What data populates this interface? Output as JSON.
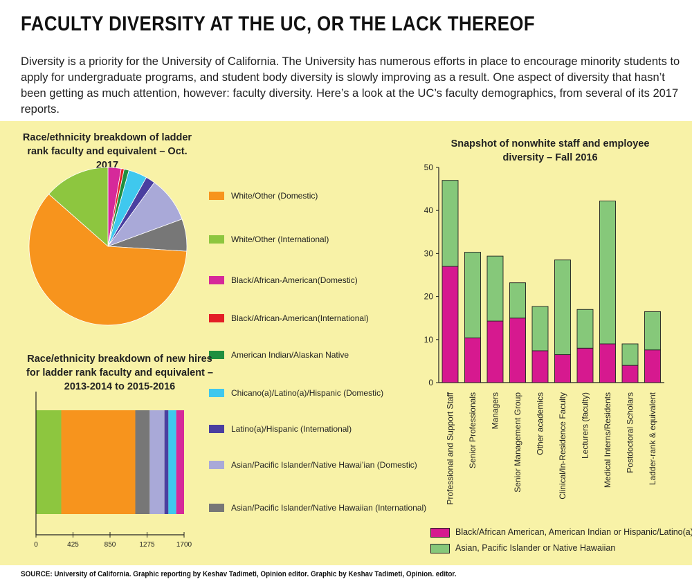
{
  "header": {
    "title": "FACULTY DIVERSITY AT THE UC, OR THE LACK THEREOF",
    "intro": "Diversity is a priority for the University of California. The University has numerous efforts in place to encourage minority students to apply for undergraduate programs, and student body diversity is slowly improving as a result. One aspect of diversity that hasn’t been getting as much attention, however: faculty diversity. Here’s a look at the UC’s faculty demographics, from several of its 2017 reports."
  },
  "legend": [
    {
      "label": "White/Other (Domestic)",
      "color": "#f7941d"
    },
    {
      "label": "White/Other (International)",
      "color": "#8dc63f"
    },
    {
      "label": "Black/African-American(Domestic)",
      "color": "#d6299a"
    },
    {
      "label": "Black/African-American(International)",
      "color": "#e31e26"
    },
    {
      "label": "American Indian/Alaskan Native",
      "color": "#1f8f3f"
    },
    {
      "label": "Chicano(a)/Latino(a)/Hispanic (Domestic)",
      "color": "#3fc8ee"
    },
    {
      "label": "Latino(a)/Hispanic (International)",
      "color": "#4a3fa0"
    },
    {
      "label": "Asian/Pacific Islander/Native Hawai’ian (Domestic)",
      "color": "#a9a9d8"
    },
    {
      "label": "Asian/Pacific Islander/Native Hawaiian (International)",
      "color": "#777777"
    }
  ],
  "chart_data": [
    {
      "type": "pie",
      "title": "Race/ethnicity breakdown of ladder rank faculty and equivalent – Oct. 2017",
      "categories": [
        "White/Other (Domestic)",
        "White/Other (International)",
        "Black/African-American(Domestic)",
        "Black/African-American(International)",
        "American Indian/Alaskan Native",
        "Chicano(a)/Latino(a)/Hispanic (Domestic)",
        "Latino(a)/Hispanic (International)",
        "Asian/Pacific Islander/Native Hawai’ian (Domestic)",
        "Asian/Pacific Islander/Native Hawaiian (International)"
      ],
      "values": [
        60.5,
        13.5,
        2.7,
        0.6,
        1.0,
        3.8,
        1.9,
        9.4,
        6.6
      ],
      "start_angle_deg": 0
    },
    {
      "type": "bar",
      "orientation": "horizontal-stacked",
      "title": "Race/ethnicity breakdown of new hires for ladder rank faculty and equivalent – 2013-2014 to 2015-2016",
      "series": [
        {
          "name": "White/Other (International)",
          "value": 290
        },
        {
          "name": "White/Other (Domestic)",
          "value": 850
        },
        {
          "name": "Asian/Pacific Islander/Native Hawaiian (International)",
          "value": 165
        },
        {
          "name": "Asian/Pacific Islander/Native Hawai’ian (Domestic)",
          "value": 170
        },
        {
          "name": "Latino(a)/Hispanic (International)",
          "value": 45
        },
        {
          "name": "Chicano(a)/Latino(a)/Hispanic (Domestic)",
          "value": 90
        },
        {
          "name": "Black/African-American(Domestic)",
          "value": 90
        }
      ],
      "xlim": [
        0,
        1700
      ],
      "xticks": [
        "0",
        "425",
        "850",
        "1275",
        "1700"
      ]
    },
    {
      "type": "bar",
      "orientation": "vertical-stacked",
      "title": "Snapshot of nonwhite staff and employee diversity – Fall 2016",
      "categories": [
        "Professional and Support Staff",
        "Senior Professionals",
        "Managers",
        "Senior Management Group",
        "Other academics",
        "Clinical/In-Residence Faculty",
        "Lecturers (faculty)",
        "Medical Interns/Residents",
        "Postdoctoral Scholars",
        "Ladder-rank & equivalent"
      ],
      "series": [
        {
          "name": "Black/African American, American Indian or Hispanic/Latino(a)",
          "color": "#d6198f",
          "values": [
            27,
            10.4,
            14.3,
            15,
            7.4,
            6.5,
            8,
            9,
            4,
            7.6
          ]
        },
        {
          "name": "Asian, Pacific Islander or Native Hawaiian",
          "color": "#86c87a",
          "values": [
            20,
            19.9,
            15.1,
            8.2,
            10.3,
            22,
            9,
            33.2,
            5,
            8.9
          ]
        }
      ],
      "ylim": [
        0,
        50
      ],
      "yticks": [
        "0",
        "10",
        "20",
        "30",
        "40",
        "50"
      ]
    }
  ],
  "source": "SOURCE: University of California. Graphic reporting by Keshav Tadimeti, Opinion editor. Graphic by Keshav Tadimeti, Opinion. editor."
}
